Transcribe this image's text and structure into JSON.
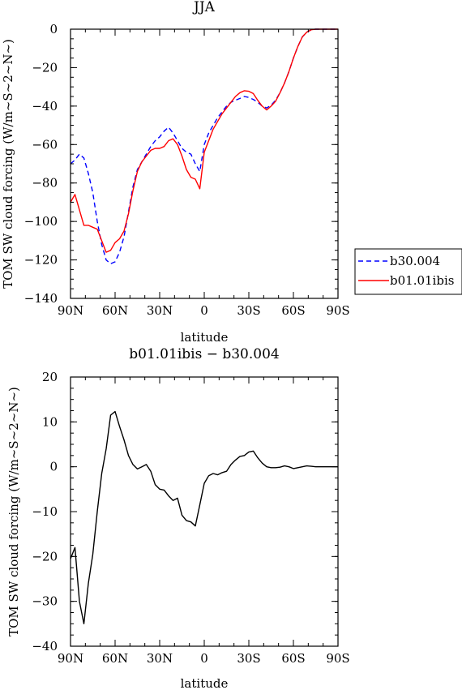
{
  "chart_data": [
    {
      "type": "line",
      "title": "JJA",
      "xlabel": "latitude",
      "ylabel": "TOM SW cloud forcing (W/m~S~2~N~)",
      "xlim": [
        90,
        -90
      ],
      "ylim": [
        -140,
        0
      ],
      "xticks": [
        90,
        60,
        30,
        0,
        -30,
        -60,
        -90
      ],
      "xticklabels": [
        "90N",
        "60N",
        "30N",
        "0",
        "30S",
        "60S",
        "90S"
      ],
      "yticks": [
        0,
        -20,
        -40,
        -60,
        -80,
        -100,
        -120,
        -140
      ],
      "yticklabels": [
        "0",
        "−20",
        "−40",
        "−60",
        "−80",
        "−100",
        "−120",
        "−140"
      ],
      "legend_position": "right",
      "x": [
        90,
        87,
        84,
        81,
        78,
        75,
        72,
        69,
        66,
        63,
        60,
        57,
        54,
        51,
        48,
        45,
        42,
        39,
        36,
        33,
        30,
        27,
        24,
        21,
        18,
        15,
        12,
        9,
        6,
        3,
        0,
        -3,
        -6,
        -9,
        -12,
        -15,
        -18,
        -21,
        -24,
        -27,
        -30,
        -33,
        -36,
        -39,
        -42,
        -45,
        -48,
        -51,
        -54,
        -57,
        -60,
        -63,
        -66,
        -69,
        -72,
        -75,
        -78,
        -81,
        -84,
        -87,
        -90
      ],
      "series": [
        {
          "name": "b30.004",
          "color": "#0000ff",
          "dash": "dashed",
          "values": [
            -70,
            -68,
            -65,
            -67,
            -75,
            -85,
            -100,
            -112,
            -120,
            -122,
            -121,
            -116,
            -108,
            -95,
            -82,
            -73,
            -69,
            -65,
            -61,
            -58,
            -56,
            -53,
            -51,
            -54,
            -58,
            -62,
            -64,
            -65,
            -70,
            -74,
            -60,
            -54,
            -50,
            -46,
            -43,
            -40,
            -38,
            -37,
            -36,
            -35,
            -35.5,
            -36.5,
            -38,
            -40,
            -41,
            -39.5,
            -37,
            -33,
            -28,
            -22,
            -15,
            -9,
            -4,
            -1.5,
            -0.3,
            0,
            0,
            0,
            0,
            0,
            0
          ]
        },
        {
          "name": "b01.01ibis",
          "color": "#ff0000",
          "dash": "solid",
          "values": [
            -90,
            -86,
            -94,
            -102,
            -102,
            -103,
            -104,
            -110,
            -116,
            -115,
            -111,
            -109,
            -105,
            -96,
            -84,
            -74,
            -69,
            -66,
            -63,
            -62,
            -62,
            -61,
            -58,
            -57,
            -60,
            -66,
            -73,
            -77,
            -78,
            -83,
            -64,
            -58,
            -52,
            -48,
            -44,
            -41,
            -38,
            -35,
            -33,
            -32,
            -32.3,
            -33.5,
            -37,
            -40,
            -42,
            -40,
            -37.5,
            -33,
            -28,
            -22,
            -15,
            -9,
            -4,
            -1.5,
            -0.3,
            0,
            0,
            0,
            0,
            0,
            0
          ]
        }
      ]
    },
    {
      "type": "line",
      "title": "b01.01ibis − b30.004",
      "xlabel": "latitude",
      "ylabel": "TOM SW cloud forcing (W/m~S~2~N~)",
      "xlim": [
        90,
        -90
      ],
      "ylim": [
        -40,
        20
      ],
      "xticks": [
        90,
        60,
        30,
        0,
        -30,
        -60,
        -90
      ],
      "xticklabels": [
        "90N",
        "60N",
        "30N",
        "0",
        "30S",
        "60S",
        "90S"
      ],
      "yticks": [
        20,
        10,
        0,
        -10,
        -20,
        -30,
        -40
      ],
      "yticklabels": [
        "20",
        "10",
        "0",
        "−10",
        "−20",
        "−30",
        "−40"
      ],
      "x": [
        90,
        87,
        84,
        81,
        78,
        75,
        72,
        69,
        66,
        63,
        60,
        57,
        54,
        51,
        48,
        45,
        42,
        39,
        36,
        33,
        30,
        27,
        24,
        21,
        18,
        15,
        12,
        9,
        6,
        3,
        0,
        -3,
        -6,
        -9,
        -12,
        -15,
        -18,
        -21,
        -24,
        -27,
        -30,
        -33,
        -36,
        -39,
        -42,
        -45,
        -48,
        -51,
        -54,
        -57,
        -60,
        -63,
        -66,
        -69,
        -72,
        -75,
        -78,
        -81,
        -84,
        -87,
        -90
      ],
      "series": [
        {
          "color": "#000000",
          "dash": "solid",
          "values": [
            -20.5,
            -18,
            -30,
            -35,
            -26,
            -19.5,
            -10,
            -1.5,
            4,
            11.5,
            12.3,
            9,
            6,
            2.5,
            0.5,
            -0.5,
            0,
            0.5,
            -1,
            -4,
            -5,
            -5.2,
            -6.5,
            -7.5,
            -7,
            -10.8,
            -12,
            -12.3,
            -13.2,
            -8.5,
            -3.7,
            -2,
            -1.5,
            -1.8,
            -1.3,
            -1,
            0.5,
            1.5,
            2.3,
            2.5,
            3.3,
            3.5,
            2,
            0.8,
            0,
            -0.2,
            -0.2,
            -0.1,
            0.2,
            0,
            -0.4,
            -0.2,
            0,
            0.2,
            0.1,
            0,
            0,
            0,
            0,
            0,
            0
          ]
        }
      ]
    }
  ]
}
